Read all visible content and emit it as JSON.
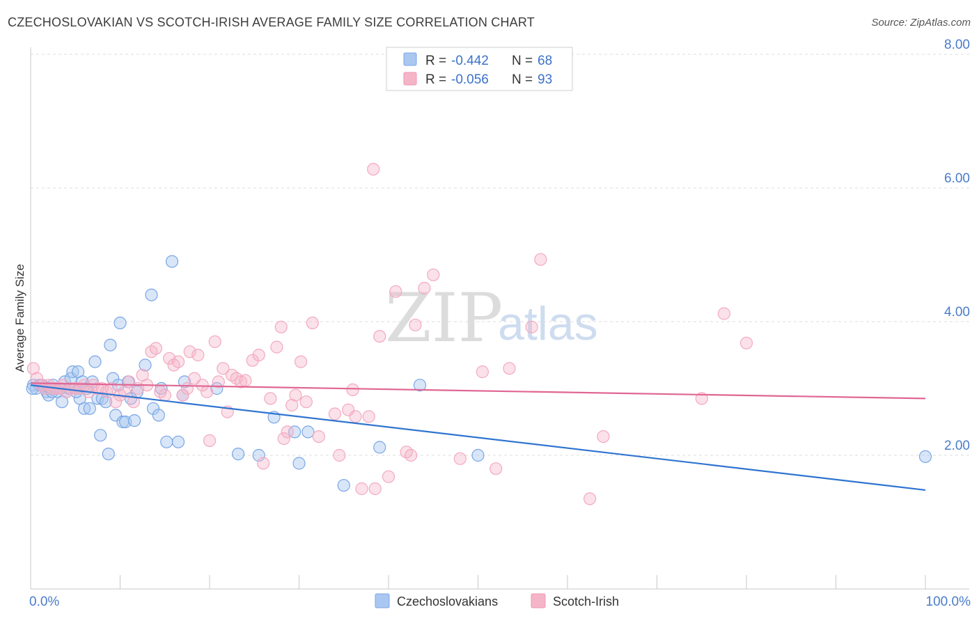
{
  "header": {
    "title": "CZECHOSLOVAKIAN VS SCOTCH-IRISH AVERAGE FAMILY SIZE CORRELATION CHART",
    "source": "Source: ZipAtlas.com"
  },
  "watermark": {
    "zip": "ZIP",
    "atlas": "atlas"
  },
  "legend": {
    "rows": [
      {
        "r_label": "R =",
        "r_value": "-0.442",
        "n_label": "N =",
        "n_value": "68",
        "color": "#a9c7f0"
      },
      {
        "r_label": "R =",
        "r_value": "-0.056",
        "n_label": "N =",
        "n_value": "93",
        "color": "#f5b5c8"
      }
    ]
  },
  "bottom_legend": {
    "items": [
      {
        "label": "Czechoslovakians",
        "color": "#a9c7f0"
      },
      {
        "label": "Scotch-Irish",
        "color": "#f5b5c8"
      }
    ]
  },
  "chart_data": {
    "type": "scatter",
    "title": "CZECHOSLOVAKIAN VS SCOTCH-IRISH AVERAGE FAMILY SIZE CORRELATION CHART",
    "ylabel": "Average Family Size",
    "xlabel": "",
    "xlim": [
      0,
      100
    ],
    "ylim": [
      0.2,
      8.5
    ],
    "x_tick_labels": [
      "0.0%",
      "100.0%"
    ],
    "y_ticks": [
      2.0,
      4.0,
      6.0,
      8.0
    ],
    "y_tick_labels": [
      "2.00",
      "4.00",
      "6.00",
      "8.00"
    ],
    "grid": "horizontal dashed",
    "legend_position": "top-center",
    "series": [
      {
        "name": "Czechoslovakians",
        "color": "#7aa6e6",
        "line_color": "#2f74d0",
        "trend": {
          "x": [
            0,
            100
          ],
          "y": [
            3.05,
            1.48
          ]
        },
        "points": [
          [
            0.3,
            3.05
          ],
          [
            0.6,
            3.0
          ],
          [
            1.0,
            3.05
          ],
          [
            1.3,
            3.05
          ],
          [
            1.6,
            3.0
          ],
          [
            1.8,
            2.95
          ],
          [
            2.0,
            2.9
          ],
          [
            2.2,
            3.0
          ],
          [
            2.5,
            3.05
          ],
          [
            2.8,
            3.0
          ],
          [
            3.0,
            2.95
          ],
          [
            3.3,
            3.0
          ],
          [
            3.5,
            2.8
          ],
          [
            3.8,
            3.1
          ],
          [
            4.0,
            2.95
          ],
          [
            4.3,
            3.0
          ],
          [
            4.5,
            3.15
          ],
          [
            4.7,
            3.25
          ],
          [
            5.0,
            3.0
          ],
          [
            5.3,
            3.25
          ],
          [
            5.5,
            2.85
          ],
          [
            5.8,
            3.1
          ],
          [
            6.0,
            2.7
          ],
          [
            6.3,
            3.0
          ],
          [
            6.6,
            2.7
          ],
          [
            6.9,
            3.1
          ],
          [
            7.2,
            3.4
          ],
          [
            7.5,
            2.85
          ],
          [
            7.8,
            2.3
          ],
          [
            8.0,
            2.85
          ],
          [
            8.4,
            2.8
          ],
          [
            8.7,
            2.02
          ],
          [
            8.9,
            3.65
          ],
          [
            9.2,
            3.15
          ],
          [
            9.5,
            2.6
          ],
          [
            9.8,
            3.05
          ],
          [
            10.0,
            3.98
          ],
          [
            10.3,
            2.5
          ],
          [
            10.6,
            2.5
          ],
          [
            10.9,
            3.1
          ],
          [
            11.2,
            2.85
          ],
          [
            11.6,
            2.52
          ],
          [
            11.9,
            2.95
          ],
          [
            12.8,
            3.35
          ],
          [
            13.5,
            4.4
          ],
          [
            13.7,
            2.7
          ],
          [
            14.3,
            2.6
          ],
          [
            14.6,
            3.0
          ],
          [
            15.2,
            2.2
          ],
          [
            15.8,
            4.9
          ],
          [
            16.5,
            2.2
          ],
          [
            17.0,
            2.9
          ],
          [
            17.2,
            3.1
          ],
          [
            20.8,
            3.0
          ],
          [
            23.2,
            2.02
          ],
          [
            25.5,
            2.0
          ],
          [
            27.2,
            2.57
          ],
          [
            29.5,
            2.35
          ],
          [
            30.0,
            1.88
          ],
          [
            31.0,
            2.35
          ],
          [
            35.0,
            1.55
          ],
          [
            39.0,
            2.12
          ],
          [
            43.5,
            3.05
          ],
          [
            50.0,
            2.0
          ],
          [
            100.0,
            1.98
          ],
          [
            0.2,
            3.0
          ],
          [
            2.4,
            2.95
          ],
          [
            5.1,
            2.95
          ]
        ]
      },
      {
        "name": "Scotch-Irish",
        "color": "#f3a9bf",
        "line_color": "#e06693",
        "trend": {
          "x": [
            0,
            100
          ],
          "y": [
            3.08,
            2.85
          ]
        },
        "points": [
          [
            0.3,
            3.3
          ],
          [
            0.7,
            3.15
          ],
          [
            1.2,
            3.05
          ],
          [
            1.6,
            3.0
          ],
          [
            2.0,
            3.05
          ],
          [
            2.4,
            3.0
          ],
          [
            2.8,
            3.0
          ],
          [
            3.2,
            3.0
          ],
          [
            3.6,
            3.05
          ],
          [
            4.0,
            2.95
          ],
          [
            4.5,
            3.0
          ],
          [
            5.0,
            3.0
          ],
          [
            5.5,
            3.0
          ],
          [
            6.0,
            3.05
          ],
          [
            6.5,
            2.95
          ],
          [
            7.0,
            3.05
          ],
          [
            7.5,
            3.0
          ],
          [
            8.0,
            3.0
          ],
          [
            8.5,
            2.95
          ],
          [
            9.0,
            3.0
          ],
          [
            9.5,
            2.8
          ],
          [
            10.0,
            2.9
          ],
          [
            10.5,
            2.95
          ],
          [
            11.0,
            3.1
          ],
          [
            11.5,
            2.8
          ],
          [
            12.0,
            3.0
          ],
          [
            12.5,
            3.2
          ],
          [
            13.0,
            3.05
          ],
          [
            13.5,
            3.55
          ],
          [
            14.0,
            3.6
          ],
          [
            14.5,
            2.95
          ],
          [
            15.0,
            2.9
          ],
          [
            15.5,
            3.45
          ],
          [
            16.0,
            3.35
          ],
          [
            16.5,
            3.4
          ],
          [
            17.0,
            2.9
          ],
          [
            17.5,
            3.0
          ],
          [
            17.8,
            3.55
          ],
          [
            18.3,
            3.15
          ],
          [
            18.7,
            3.5
          ],
          [
            19.2,
            3.05
          ],
          [
            19.7,
            2.95
          ],
          [
            20.0,
            2.22
          ],
          [
            20.6,
            3.7
          ],
          [
            21.0,
            3.1
          ],
          [
            21.5,
            3.3
          ],
          [
            22.0,
            2.65
          ],
          [
            22.5,
            3.2
          ],
          [
            23.0,
            3.15
          ],
          [
            23.5,
            3.1
          ],
          [
            24.0,
            3.12
          ],
          [
            24.8,
            3.42
          ],
          [
            25.5,
            3.5
          ],
          [
            26.0,
            1.88
          ],
          [
            26.8,
            2.85
          ],
          [
            27.5,
            3.62
          ],
          [
            28.0,
            3.92
          ],
          [
            28.3,
            2.25
          ],
          [
            28.7,
            2.35
          ],
          [
            29.2,
            2.75
          ],
          [
            29.6,
            2.9
          ],
          [
            30.2,
            3.4
          ],
          [
            30.8,
            2.8
          ],
          [
            31.5,
            3.98
          ],
          [
            32.2,
            2.28
          ],
          [
            34.0,
            2.62
          ],
          [
            34.5,
            2.0
          ],
          [
            35.5,
            2.68
          ],
          [
            36.0,
            2.98
          ],
          [
            36.3,
            2.58
          ],
          [
            37.0,
            1.5
          ],
          [
            37.8,
            2.58
          ],
          [
            38.3,
            6.28
          ],
          [
            38.5,
            1.5
          ],
          [
            39.0,
            3.78
          ],
          [
            40.0,
            1.68
          ],
          [
            40.8,
            4.45
          ],
          [
            42.0,
            2.05
          ],
          [
            42.5,
            2.0
          ],
          [
            43.0,
            3.95
          ],
          [
            44.0,
            4.5
          ],
          [
            45.0,
            4.7
          ],
          [
            48.0,
            1.95
          ],
          [
            50.5,
            3.25
          ],
          [
            52.0,
            1.8
          ],
          [
            53.5,
            3.3
          ],
          [
            56.0,
            3.92
          ],
          [
            57.0,
            4.93
          ],
          [
            62.5,
            1.35
          ],
          [
            64.0,
            2.28
          ],
          [
            75.0,
            2.85
          ],
          [
            77.5,
            4.12
          ],
          [
            80.0,
            3.68
          ]
        ]
      }
    ]
  }
}
